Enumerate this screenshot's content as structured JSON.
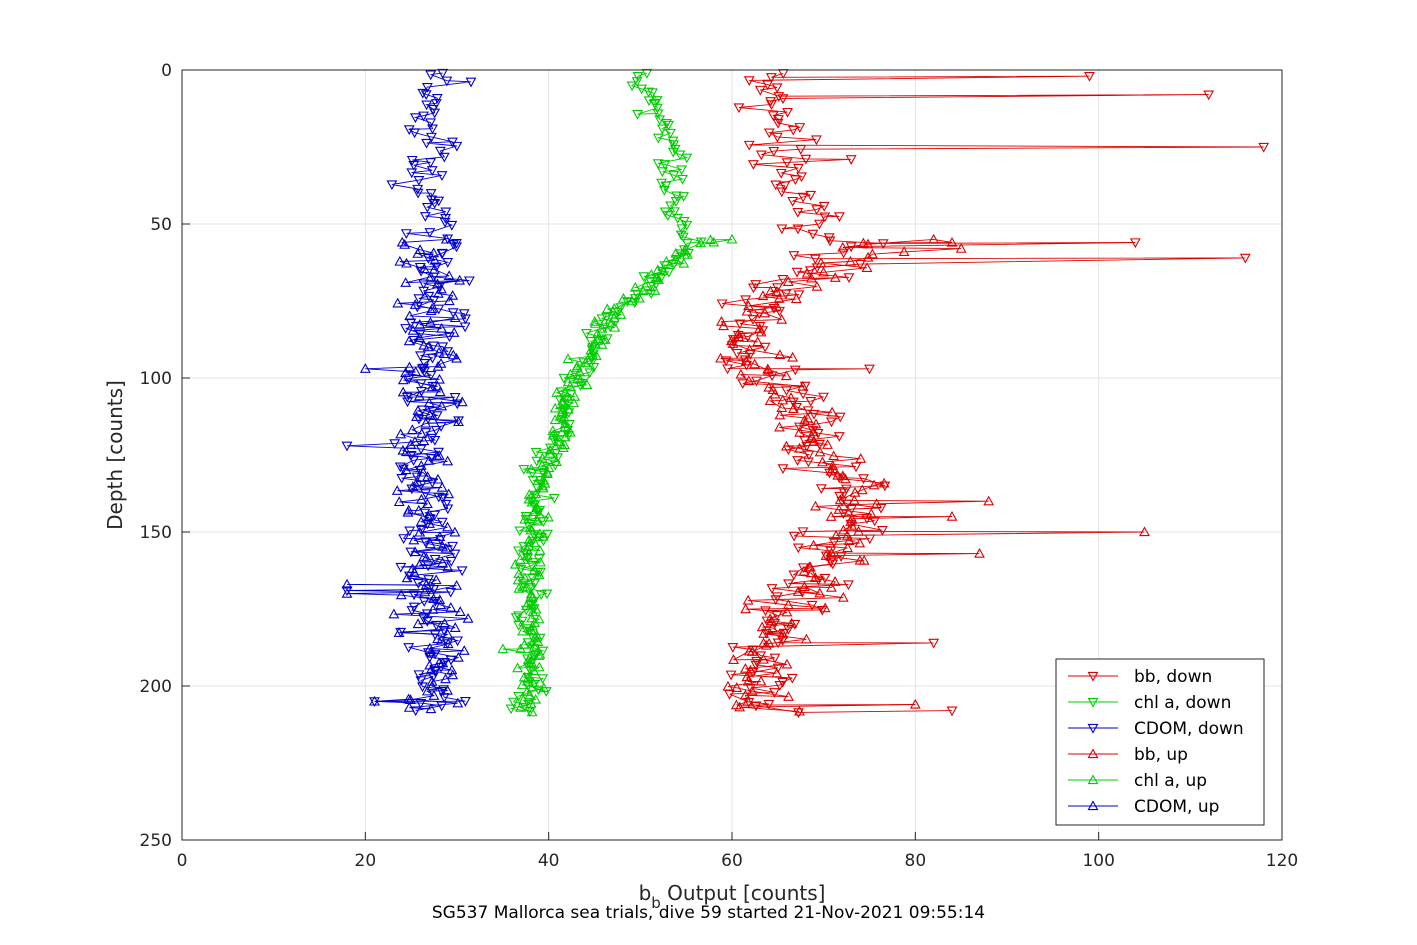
{
  "chart_data": {
    "type": "line",
    "title": "",
    "xlabel_main": "b",
    "xlabel_sub": "b",
    "xlabel_rest": " Output [counts]",
    "ylabel": "Depth [counts]",
    "xlim": [
      0,
      120
    ],
    "ylim": [
      0,
      250
    ],
    "y_reversed": true,
    "grid": true,
    "xticks": [
      0,
      20,
      40,
      60,
      80,
      100,
      120
    ],
    "yticks": [
      0,
      50,
      100,
      150,
      200,
      250
    ],
    "legend_position": "bottom-right",
    "series": [
      {
        "name": "bb, down",
        "color": "#dd0000",
        "marker": "triangle-down",
        "segment": "down",
        "center": 67,
        "spread": 3,
        "profile": [
          [
            1,
            62
          ],
          [
            8,
            65
          ],
          [
            20,
            64
          ],
          [
            30,
            66
          ],
          [
            45,
            67
          ],
          [
            52,
            70
          ],
          [
            56,
            72
          ],
          [
            65,
            70
          ],
          [
            75,
            63
          ],
          [
            85,
            62
          ],
          [
            95,
            62
          ],
          [
            105,
            66
          ],
          [
            115,
            67
          ],
          [
            125,
            68
          ],
          [
            135,
            74
          ],
          [
            145,
            74
          ],
          [
            155,
            72
          ],
          [
            165,
            70
          ],
          [
            175,
            66
          ],
          [
            185,
            64
          ],
          [
            195,
            63
          ],
          [
            208,
            64
          ]
        ],
        "outliers": [
          [
            2,
            99
          ],
          [
            8,
            112
          ],
          [
            25,
            118
          ],
          [
            29,
            73
          ],
          [
            56,
            104
          ],
          [
            61,
            116
          ],
          [
            97,
            75
          ],
          [
            186,
            82
          ],
          [
            208,
            84
          ]
        ]
      },
      {
        "name": "chl a, down",
        "color": "#00cc00",
        "marker": "triangle-down",
        "segment": "down",
        "center": 50,
        "spread": 1.2,
        "profile": [
          [
            1,
            50
          ],
          [
            10,
            51
          ],
          [
            20,
            53
          ],
          [
            30,
            54
          ],
          [
            45,
            53
          ],
          [
            52,
            55
          ],
          [
            56,
            56
          ],
          [
            60,
            54
          ],
          [
            70,
            51
          ],
          [
            80,
            47
          ],
          [
            90,
            45
          ],
          [
            100,
            43
          ],
          [
            110,
            42
          ],
          [
            120,
            41
          ],
          [
            130,
            39
          ],
          [
            140,
            39
          ],
          [
            150,
            38
          ],
          [
            160,
            38
          ],
          [
            175,
            38
          ],
          [
            190,
            38
          ],
          [
            208,
            38
          ]
        ],
        "outliers": []
      },
      {
        "name": "CDOM, down",
        "color": "#0000cc",
        "marker": "triangle-down",
        "segment": "down",
        "center": 27,
        "spread": 2.5,
        "profile": [
          [
            1,
            27
          ],
          [
            20,
            27
          ],
          [
            40,
            26
          ],
          [
            52,
            27
          ],
          [
            60,
            28
          ],
          [
            80,
            27
          ],
          [
            100,
            27
          ],
          [
            120,
            26
          ],
          [
            140,
            27
          ],
          [
            160,
            27
          ],
          [
            180,
            27
          ],
          [
            200,
            28
          ],
          [
            208,
            27
          ]
        ],
        "outliers": [
          [
            122,
            18
          ],
          [
            169,
            18
          ],
          [
            205,
            21
          ]
        ]
      },
      {
        "name": "bb, up",
        "color": "#dd0000",
        "marker": "triangle-up",
        "segment": "up",
        "center": 67,
        "spread": 3,
        "profile": [
          [
            56,
            72
          ],
          [
            60,
            75
          ],
          [
            65,
            70
          ],
          [
            75,
            63
          ],
          [
            85,
            62
          ],
          [
            95,
            62
          ],
          [
            105,
            66
          ],
          [
            115,
            67
          ],
          [
            125,
            68
          ],
          [
            135,
            74
          ],
          [
            145,
            74
          ],
          [
            155,
            72
          ],
          [
            165,
            70
          ],
          [
            175,
            66
          ],
          [
            185,
            64
          ],
          [
            195,
            63
          ],
          [
            208,
            64
          ]
        ],
        "outliers": [
          [
            55,
            82
          ],
          [
            56,
            84
          ],
          [
            58,
            85
          ],
          [
            140,
            88
          ],
          [
            145,
            84
          ],
          [
            150,
            105
          ],
          [
            157,
            87
          ],
          [
            206,
            80
          ]
        ]
      },
      {
        "name": "chl a, up",
        "color": "#00cc00",
        "marker": "triangle-up",
        "segment": "up",
        "center": 50,
        "spread": 1.2,
        "profile": [
          [
            55,
            58
          ],
          [
            60,
            54
          ],
          [
            70,
            51
          ],
          [
            80,
            47
          ],
          [
            90,
            45
          ],
          [
            100,
            43
          ],
          [
            110,
            42
          ],
          [
            120,
            41
          ],
          [
            130,
            39
          ],
          [
            140,
            39
          ],
          [
            150,
            38
          ],
          [
            160,
            38
          ],
          [
            175,
            38
          ],
          [
            190,
            38
          ],
          [
            208,
            38
          ]
        ],
        "outliers": [
          [
            55,
            60
          ],
          [
            188,
            35
          ]
        ]
      },
      {
        "name": "CDOM, up",
        "color": "#0000cc",
        "marker": "triangle-up",
        "segment": "up",
        "center": 27,
        "spread": 2.5,
        "profile": [
          [
            55,
            25
          ],
          [
            60,
            27
          ],
          [
            80,
            27
          ],
          [
            100,
            27
          ],
          [
            120,
            26
          ],
          [
            140,
            27
          ],
          [
            160,
            27
          ],
          [
            180,
            27
          ],
          [
            200,
            28
          ],
          [
            208,
            27
          ]
        ],
        "outliers": [
          [
            97,
            20
          ],
          [
            167,
            18
          ],
          [
            170,
            18
          ],
          [
            205,
            21
          ]
        ]
      }
    ]
  },
  "footer": {
    "caption": "SG537 Mallorca sea trials, dive 59 started 21-Nov-2021 09:55:14"
  }
}
